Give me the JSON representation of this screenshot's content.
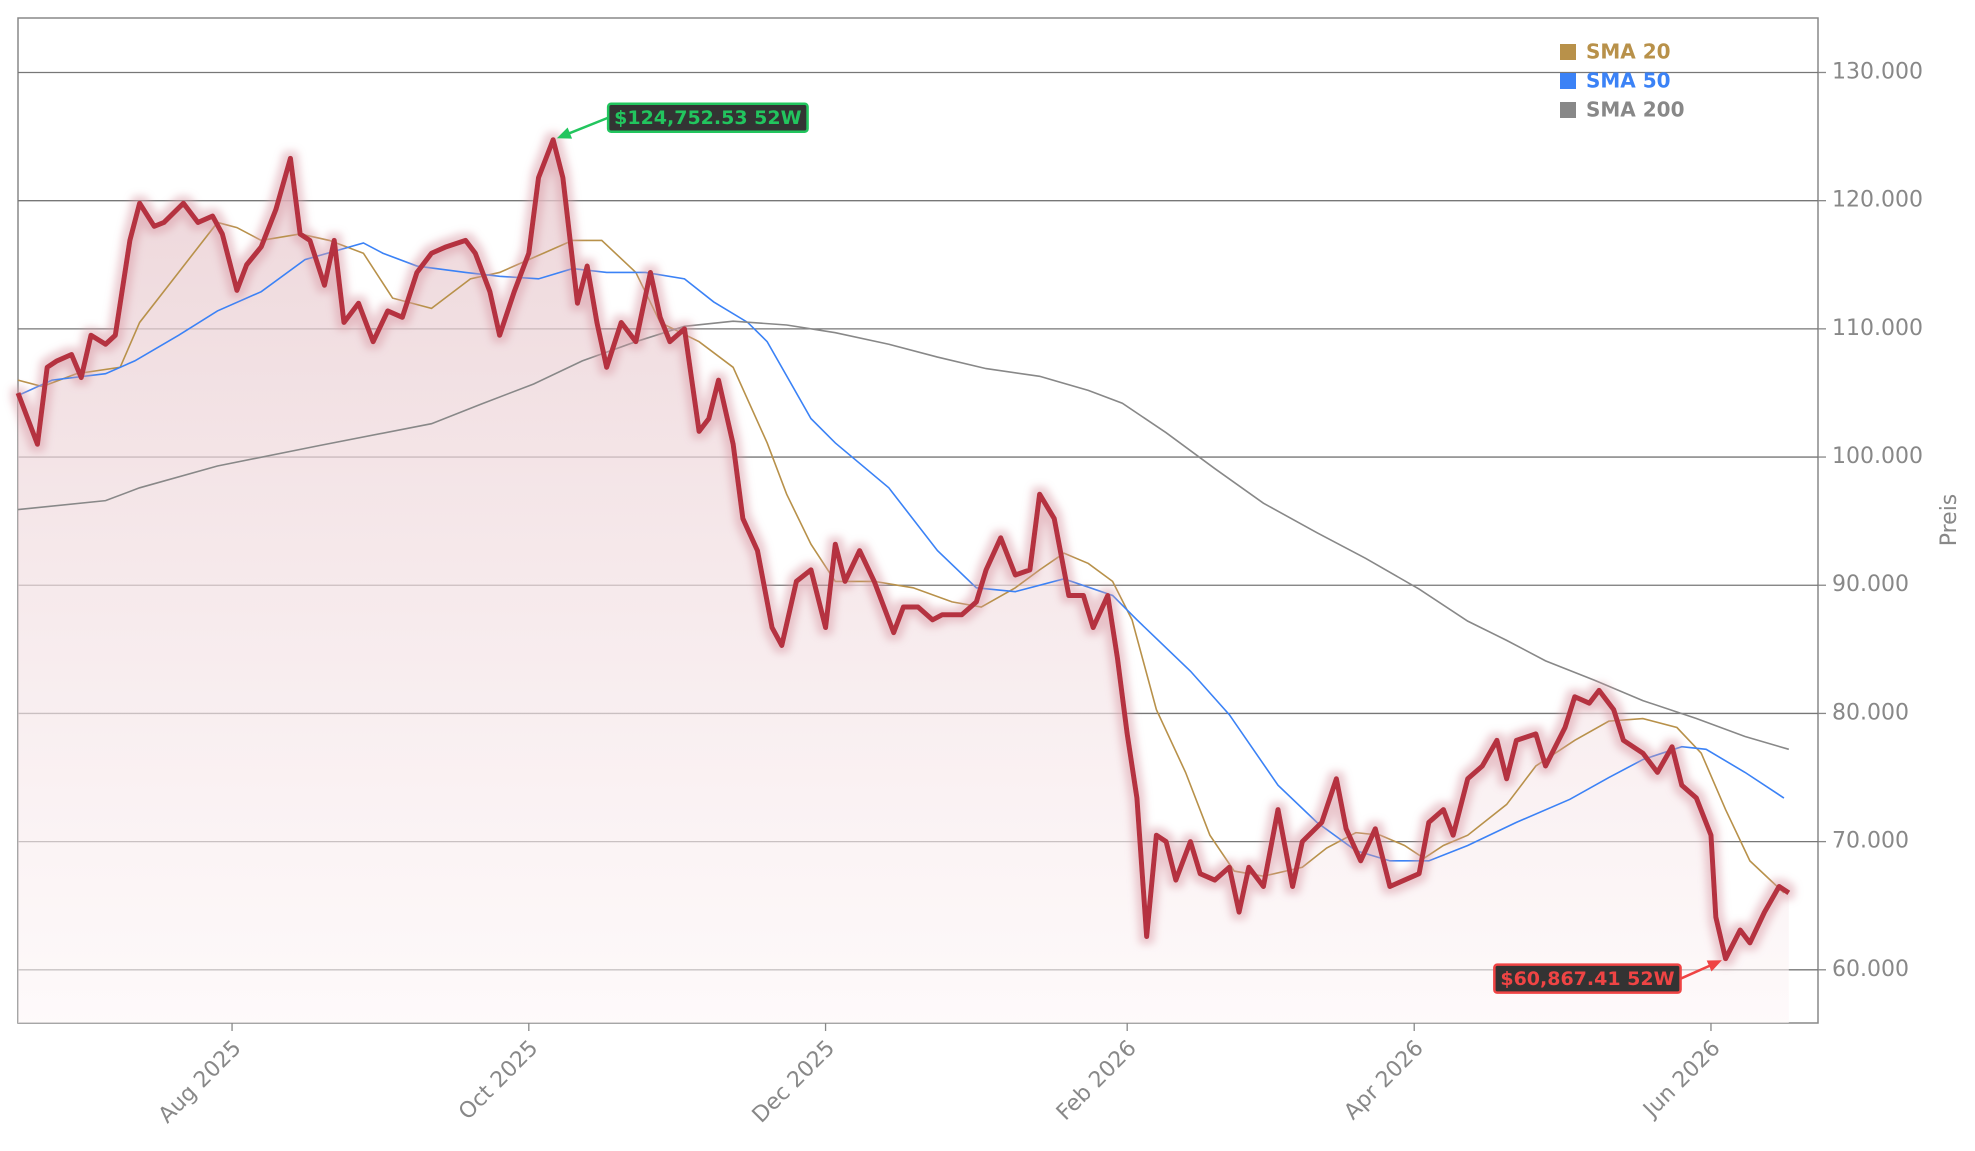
{
  "chart_data": {
    "type": "line",
    "ylabel": "Preis",
    "legend": "upper right",
    "grid": true,
    "color": "#b5323f",
    "xlim": [
      -44,
      326
    ],
    "ylim": [
      55850,
      134250
    ],
    "xticks": [
      {
        "value": 0,
        "label": "Aug 2025"
      },
      {
        "value": 61,
        "label": "Oct 2025"
      },
      {
        "value": 122,
        "label": "Dec 2025"
      },
      {
        "value": 184,
        "label": "Feb 2026"
      },
      {
        "value": 243,
        "label": "Apr 2026"
      },
      {
        "value": 304,
        "label": "Jun 2026"
      }
    ],
    "yticks": [
      {
        "value": 60000,
        "label": "60.000"
      },
      {
        "value": 70000,
        "label": "70.000"
      },
      {
        "value": 80000,
        "label": "80.000"
      },
      {
        "value": 90000,
        "label": "90.000"
      },
      {
        "value": 100000,
        "label": "100.000"
      },
      {
        "value": 110000,
        "label": "110.000"
      },
      {
        "value": 120000,
        "label": "120.000"
      },
      {
        "value": 130000,
        "label": "130.000"
      }
    ],
    "x": [
      -44,
      -40,
      -38,
      -36,
      -33,
      -31,
      -29,
      -26,
      -24,
      -21,
      -19,
      -16,
      -14,
      -10,
      -7,
      -4,
      -2,
      1,
      3,
      6,
      9,
      12,
      14,
      16,
      19,
      21,
      23,
      26,
      29,
      32,
      35,
      38,
      41,
      44,
      48,
      50,
      53,
      55,
      58,
      61,
      63,
      66,
      68,
      71,
      73,
      75,
      77,
      80,
      83,
      86,
      88,
      90,
      93,
      96,
      98,
      100,
      103,
      105,
      108,
      111,
      113,
      116,
      119,
      122,
      124,
      126,
      129,
      132,
      136,
      138,
      141,
      144,
      146,
      150,
      153,
      155,
      158,
      161,
      164,
      166,
      169,
      172,
      175,
      177,
      180,
      182,
      184,
      186,
      188,
      190,
      192,
      194,
      197,
      199,
      202,
      205,
      207,
      209,
      212,
      215,
      218,
      220,
      224,
      227,
      229,
      232,
      235,
      238,
      241,
      244,
      246,
      249,
      251,
      254,
      257,
      260,
      262,
      264,
      268,
      270,
      274,
      276,
      279,
      281,
      284,
      286,
      290,
      293,
      296,
      298,
      301,
      304,
      305,
      307,
      310,
      312,
      315,
      318,
      320
    ],
    "values": [
      105000,
      101000,
      107000,
      107500,
      108000,
      106200,
      109500,
      108800,
      109500,
      116900,
      119800,
      118000,
      118300,
      119800,
      118300,
      118800,
      117400,
      113000,
      115000,
      116400,
      119300,
      123300,
      117400,
      116900,
      113400,
      116900,
      110500,
      112000,
      109000,
      111400,
      110900,
      114400,
      115900,
      116400,
      116900,
      115900,
      112900,
      109500,
      112900,
      115900,
      121800,
      124752.53,
      121800,
      112000,
      114900,
      110500,
      107000,
      110500,
      109000,
      114400,
      110900,
      109000,
      110000,
      102000,
      103000,
      106000,
      101000,
      95200,
      92700,
      86700,
      85300,
      90300,
      91200,
      86700,
      93200,
      90300,
      92700,
      90300,
      86300,
      88300,
      88300,
      87300,
      87700,
      87700,
      88700,
      91200,
      93700,
      90800,
      91200,
      97100,
      95200,
      89200,
      89200,
      86700,
      89200,
      84300,
      78400,
      73400,
      62600,
      70500,
      70000,
      67000,
      70000,
      67500,
      67000,
      68000,
      64500,
      68000,
      66500,
      72500,
      66500,
      70000,
      71500,
      74900,
      71000,
      68500,
      71000,
      66500,
      67000,
      67500,
      71500,
      72500,
      70500,
      74900,
      75900,
      77900,
      74900,
      77900,
      78400,
      75900,
      78900,
      81300,
      80800,
      81800,
      80300,
      77900,
      76900,
      75400,
      77400,
      74400,
      73400,
      70500,
      64100,
      60867.41,
      63100,
      62100,
      64500,
      66500,
      66000
    ],
    "series": [
      {
        "name": "SMA 20",
        "color": "#b8914a",
        "x": [
          -44,
          -39,
          -32,
          -23,
          -19,
          -11,
          -3,
          1,
          6,
          14,
          20,
          27,
          33,
          41,
          49,
          55,
          64,
          70,
          76,
          83,
          88,
          96,
          103,
          110,
          114,
          119,
          124,
          132,
          140,
          148,
          154,
          161,
          166,
          171,
          176,
          181,
          185,
          190,
          196,
          201,
          206,
          212,
          220,
          225,
          231,
          236,
          241,
          245,
          249,
          254,
          262,
          268,
          276,
          283,
          290,
          297,
          302,
          307,
          312,
          319
        ],
        "values": [
          106000,
          105500,
          106500,
          107000,
          110500,
          114400,
          118300,
          117900,
          116900,
          117400,
          116900,
          115900,
          112400,
          111600,
          113900,
          114400,
          115900,
          116900,
          116900,
          114400,
          110500,
          109000,
          107000,
          101100,
          97100,
          93200,
          90300,
          90300,
          89800,
          88700,
          88300,
          89800,
          91200,
          92500,
          91700,
          90300,
          87300,
          80300,
          75400,
          70500,
          67700,
          67300,
          68000,
          69500,
          70700,
          70500,
          69700,
          68700,
          69700,
          70500,
          72900,
          75900,
          77900,
          79400,
          79600,
          78900,
          76900,
          72500,
          68500,
          66000
        ]
      },
      {
        "name": "SMA 50",
        "color": "#3b82f6",
        "x": [
          -44,
          -37,
          -26,
          -20,
          -11,
          -3,
          6,
          15,
          27,
          31,
          38,
          48,
          55,
          63,
          70,
          77,
          85,
          93,
          99,
          106,
          110,
          119,
          124,
          135,
          145,
          153,
          161,
          171,
          181,
          186,
          197,
          205,
          215,
          223,
          231,
          238,
          246,
          254,
          264,
          275,
          283,
          290,
          298,
          303,
          311,
          319
        ],
        "values": [
          104800,
          106000,
          106500,
          107500,
          109500,
          111400,
          112900,
          115400,
          116700,
          115900,
          114900,
          114400,
          114100,
          113900,
          114700,
          114400,
          114400,
          113900,
          112100,
          110500,
          109000,
          103000,
          101100,
          97600,
          92700,
          89800,
          89500,
          90500,
          89200,
          87300,
          83300,
          79900,
          74400,
          71500,
          69300,
          68500,
          68500,
          69700,
          71500,
          73300,
          75000,
          76400,
          77400,
          77200,
          75400,
          73400
        ]
      },
      {
        "name": "SMA 200",
        "color": "#888888",
        "x": [
          -44,
          -26,
          -19,
          -3,
          18,
          41,
          51,
          62,
          72,
          83,
          93,
          103,
          114,
          124,
          135,
          145,
          155,
          166,
          176,
          183,
          192,
          202,
          212,
          223,
          233,
          244,
          254,
          262,
          270,
          280,
          290,
          301,
          311,
          320
        ],
        "values": [
          95900,
          96600,
          97600,
          99300,
          100900,
          102600,
          104100,
          105700,
          107500,
          109000,
          110200,
          110600,
          110300,
          109700,
          108800,
          107800,
          106900,
          106300,
          105200,
          104200,
          101900,
          99100,
          96400,
          94100,
          92100,
          89700,
          87200,
          85700,
          84100,
          82600,
          81000,
          79600,
          78200,
          77200
        ]
      }
    ],
    "annotations": [
      {
        "text": "$124,752.53 52W",
        "x": 66,
        "y": 124752.53,
        "color": "#22c55e"
      },
      {
        "text": "$60,867.41 52W",
        "x": 307,
        "y": 60867.41,
        "color": "#ef4444"
      }
    ]
  }
}
